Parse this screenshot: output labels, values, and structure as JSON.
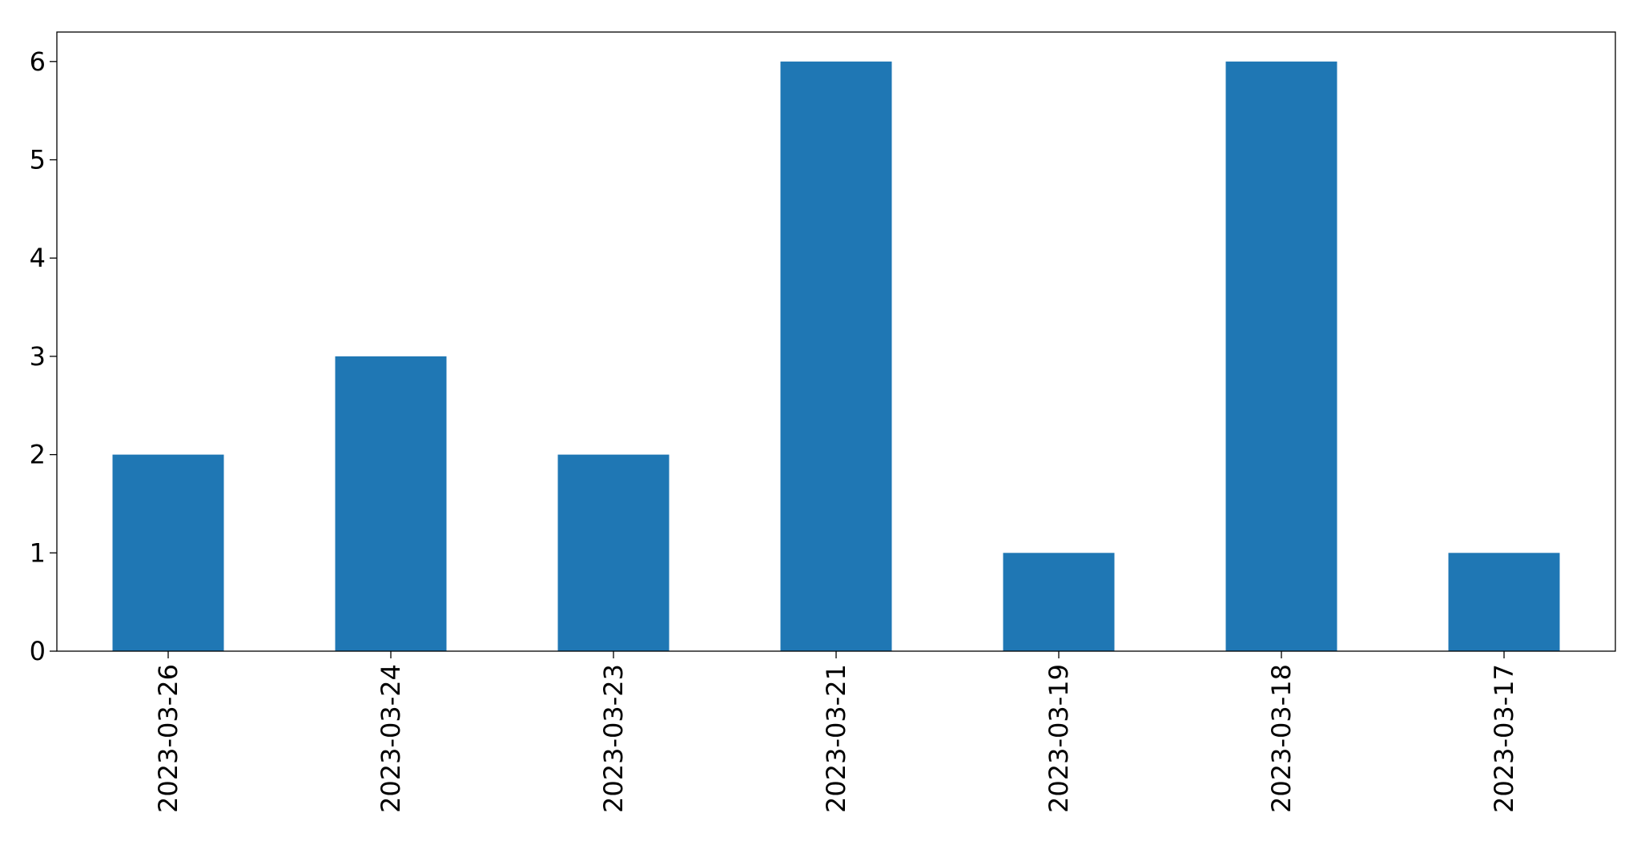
{
  "chart_data": {
    "type": "bar",
    "title": "",
    "xlabel": "",
    "ylabel": "",
    "categories": [
      "2023-03-26",
      "2023-03-24",
      "2023-03-23",
      "2023-03-21",
      "2023-03-19",
      "2023-03-18",
      "2023-03-17"
    ],
    "values": [
      2,
      3,
      2,
      6,
      1,
      6,
      1
    ],
    "ylim": [
      0,
      6.3
    ],
    "yticks": [
      0,
      1,
      2,
      3,
      4,
      5,
      6
    ],
    "bar_color": "#1f77b4",
    "grid": false,
    "legend": "none"
  }
}
